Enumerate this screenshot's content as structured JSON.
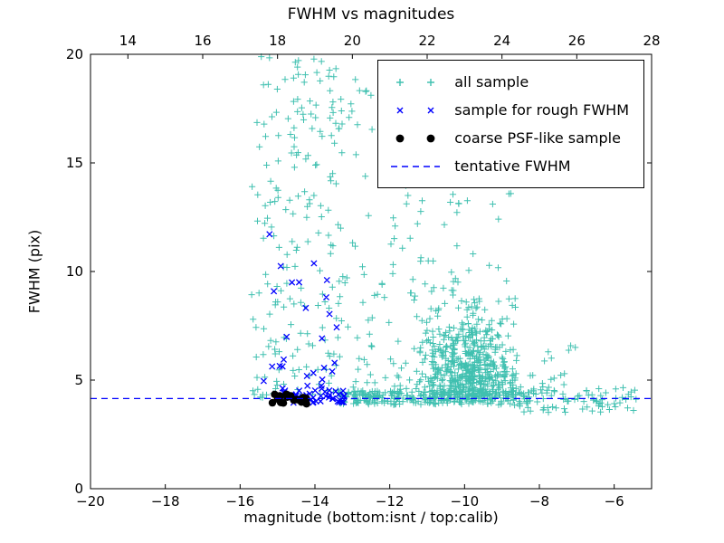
{
  "figure": {
    "title": "FWHM vs magnitudes",
    "xlabel": "magnitude (bottom:isnt / top:calib)",
    "ylabel": "FWHM (pix)"
  },
  "legend": {
    "items": [
      {
        "label": "all sample",
        "marker": "plus",
        "color": "#40c0b0"
      },
      {
        "label": "sample for rough FWHM",
        "marker": "x",
        "color": "#0000ff"
      },
      {
        "label": "coarse PSF-like sample",
        "marker": "dot",
        "color": "#000000"
      },
      {
        "label": "tentative FWHM",
        "marker": "dashed-line",
        "color": "#0000ff"
      }
    ]
  },
  "chart_data": {
    "type": "scatter",
    "title": "FWHM vs magnitudes",
    "xlabel": "magnitude (bottom:isnt / top:calib)",
    "ylabel": "FWHM (pix)",
    "xlim": [
      -20,
      -5
    ],
    "ylim": [
      0,
      20
    ],
    "top_xlim": [
      13,
      28
    ],
    "x_ticks": [
      -20,
      -18,
      -16,
      -14,
      -12,
      -10,
      -8,
      -6
    ],
    "x_tick_labels": [
      "−20",
      "−18",
      "−16",
      "−14",
      "−12",
      "−10",
      "−8",
      "−6"
    ],
    "top_x_ticks": [
      14,
      16,
      18,
      20,
      22,
      24,
      26,
      28
    ],
    "top_x_tick_labels": [
      "14",
      "16",
      "18",
      "20",
      "22",
      "24",
      "26",
      "28"
    ],
    "y_ticks": [
      0,
      5,
      10,
      15,
      20
    ],
    "y_tick_labels": [
      "0",
      "5",
      "10",
      "15",
      "20"
    ],
    "grid": false,
    "legend_position": "upper right",
    "tentative_fwhm": 4.15,
    "colors": {
      "all_sample": "#40c0b0",
      "rough_fwhm": "#0000ff",
      "psf_like": "#000000",
      "tentative_line": "#0000ff"
    },
    "seed": 42,
    "series": [
      {
        "name": "all sample",
        "marker": "plus",
        "color": "#40c0b0",
        "clusters": [
          {
            "type": "uniform",
            "count": 150,
            "x": [
              -15.7,
              -13.5
            ],
            "y": [
              4.2,
              20.0
            ],
            "ybias": 1.6
          },
          {
            "type": "uniform",
            "count": 40,
            "x": [
              -15.3,
              -12.6
            ],
            "y": [
              13.0,
              19.9
            ],
            "ybias": 1.0
          },
          {
            "type": "uniform",
            "count": 260,
            "x": [
              -13.6,
              -8.6
            ],
            "y": [
              4.3,
              19.0
            ],
            "ybias": 2.2
          },
          {
            "type": "gauss",
            "count": 480,
            "cx": -9.9,
            "sx": 0.6,
            "xclip": [
              -12.6,
              -7.6
            ],
            "y0": 4.05,
            "yscale": 1.9,
            "ymax": 13.5
          },
          {
            "type": "uniform",
            "count": 260,
            "x": [
              -13.4,
              -8.2
            ],
            "y": [
              3.85,
              4.5
            ],
            "ybias": 1.0
          },
          {
            "type": "uniform",
            "count": 80,
            "x": [
              -8.6,
              -5.4
            ],
            "y": [
              3.5,
              4.7
            ],
            "ybias": 1.0
          },
          {
            "type": "uniform",
            "count": 12,
            "x": [
              -8.6,
              -6.9
            ],
            "y": [
              4.7,
              7.2
            ],
            "ybias": 1.5
          }
        ]
      },
      {
        "name": "sample for rough FWHM",
        "marker": "x",
        "color": "#0000ff",
        "clusters": [
          {
            "type": "uniform",
            "count": 42,
            "x": [
              -14.9,
              -13.2
            ],
            "y": [
              3.95,
              4.55
            ],
            "ybias": 1.0
          },
          {
            "type": "uniform",
            "count": 28,
            "x": [
              -15.45,
              -13.4
            ],
            "y": [
              4.6,
              12.0
            ],
            "ybias": 1.7
          }
        ]
      },
      {
        "name": "coarse PSF-like sample",
        "marker": "dot",
        "color": "#000000",
        "clusters": [
          {
            "type": "uniform",
            "count": 22,
            "x": [
              -15.15,
              -14.2
            ],
            "y": [
              3.9,
              4.35
            ],
            "ybias": 1.0
          }
        ]
      }
    ]
  }
}
